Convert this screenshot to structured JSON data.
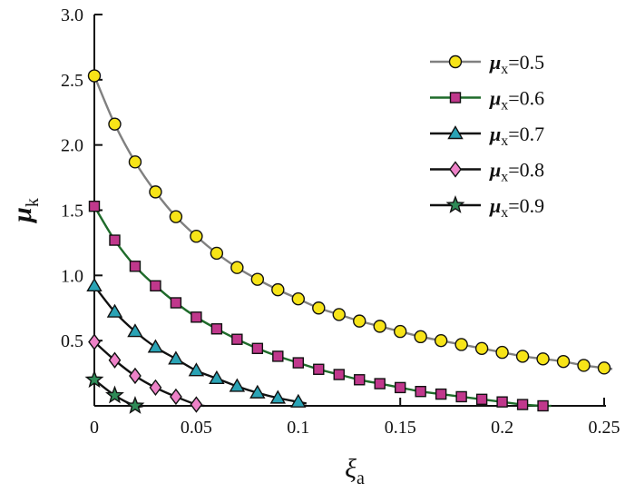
{
  "chart_data": {
    "type": "line",
    "xlabel": "ξ",
    "xlabel_sub": "a",
    "ylabel": "μ",
    "ylabel_sub": "k",
    "xlim": [
      0,
      0.25
    ],
    "ylim": [
      0,
      3.0
    ],
    "xticks": [
      0,
      0.05,
      0.1,
      0.15,
      0.2,
      0.25
    ],
    "xtick_labels": [
      "0",
      "0.05",
      "0.1",
      "0.15",
      "0.2",
      "0.25"
    ],
    "yticks": [
      0.5,
      1.0,
      1.5,
      2.0,
      2.5,
      3.0
    ],
    "ytick_labels": [
      "0.5",
      "1.0",
      "1.5",
      "2.0",
      "2.5",
      "3.0"
    ],
    "grid": false,
    "legend": "top-right",
    "series": [
      {
        "name": "μx=0.5",
        "name_base": "μ",
        "name_sub": "x",
        "name_value": "=0.5",
        "marker": "circle",
        "line_color": "#808080",
        "marker_color": "#f7e418",
        "x": [
          0,
          0.01,
          0.02,
          0.03,
          0.04,
          0.05,
          0.06,
          0.07,
          0.08,
          0.09,
          0.1,
          0.11,
          0.12,
          0.13,
          0.14,
          0.15,
          0.16,
          0.17,
          0.18,
          0.19,
          0.2,
          0.21,
          0.22,
          0.23,
          0.24,
          0.25
        ],
        "y": [
          2.53,
          2.16,
          1.87,
          1.64,
          1.45,
          1.3,
          1.17,
          1.06,
          0.97,
          0.89,
          0.82,
          0.75,
          0.7,
          0.65,
          0.61,
          0.57,
          0.53,
          0.5,
          0.47,
          0.44,
          0.41,
          0.38,
          0.36,
          0.34,
          0.31,
          0.29
        ]
      },
      {
        "name": "μx=0.6",
        "name_base": "μ",
        "name_sub": "x",
        "name_value": "=0.6",
        "marker": "square",
        "line_color": "#1e6b2a",
        "marker_color": "#c0388c",
        "x": [
          0,
          0.01,
          0.02,
          0.03,
          0.04,
          0.05,
          0.06,
          0.07,
          0.08,
          0.09,
          0.1,
          0.11,
          0.12,
          0.13,
          0.14,
          0.15,
          0.16,
          0.17,
          0.18,
          0.19,
          0.2,
          0.21,
          0.22
        ],
        "y": [
          1.53,
          1.27,
          1.07,
          0.92,
          0.79,
          0.68,
          0.59,
          0.51,
          0.44,
          0.38,
          0.33,
          0.28,
          0.24,
          0.2,
          0.17,
          0.14,
          0.11,
          0.09,
          0.07,
          0.05,
          0.03,
          0.01,
          0.0
        ]
      },
      {
        "name": "μx=0.7",
        "name_base": "μ",
        "name_sub": "x",
        "name_value": "=0.7",
        "marker": "triangle",
        "line_color": "#111111",
        "marker_color": "#2aa3b5",
        "x": [
          0,
          0.01,
          0.02,
          0.03,
          0.04,
          0.05,
          0.06,
          0.07,
          0.08,
          0.09,
          0.1
        ],
        "y": [
          0.92,
          0.72,
          0.57,
          0.45,
          0.36,
          0.27,
          0.21,
          0.15,
          0.1,
          0.06,
          0.03
        ]
      },
      {
        "name": "μx=0.8",
        "name_base": "μ",
        "name_sub": "x",
        "name_value": "=0.8",
        "marker": "diamond",
        "line_color": "#111111",
        "marker_color": "#ee82c8",
        "x": [
          0,
          0.01,
          0.02,
          0.03,
          0.04,
          0.05
        ],
        "y": [
          0.49,
          0.35,
          0.23,
          0.14,
          0.07,
          0.01
        ]
      },
      {
        "name": "μx=0.9",
        "name_base": "μ",
        "name_sub": "x",
        "name_value": "=0.9",
        "marker": "star",
        "line_color": "#111111",
        "marker_color": "#2e8b57",
        "x": [
          0,
          0.01,
          0.02
        ],
        "y": [
          0.2,
          0.08,
          0.0
        ]
      }
    ]
  }
}
